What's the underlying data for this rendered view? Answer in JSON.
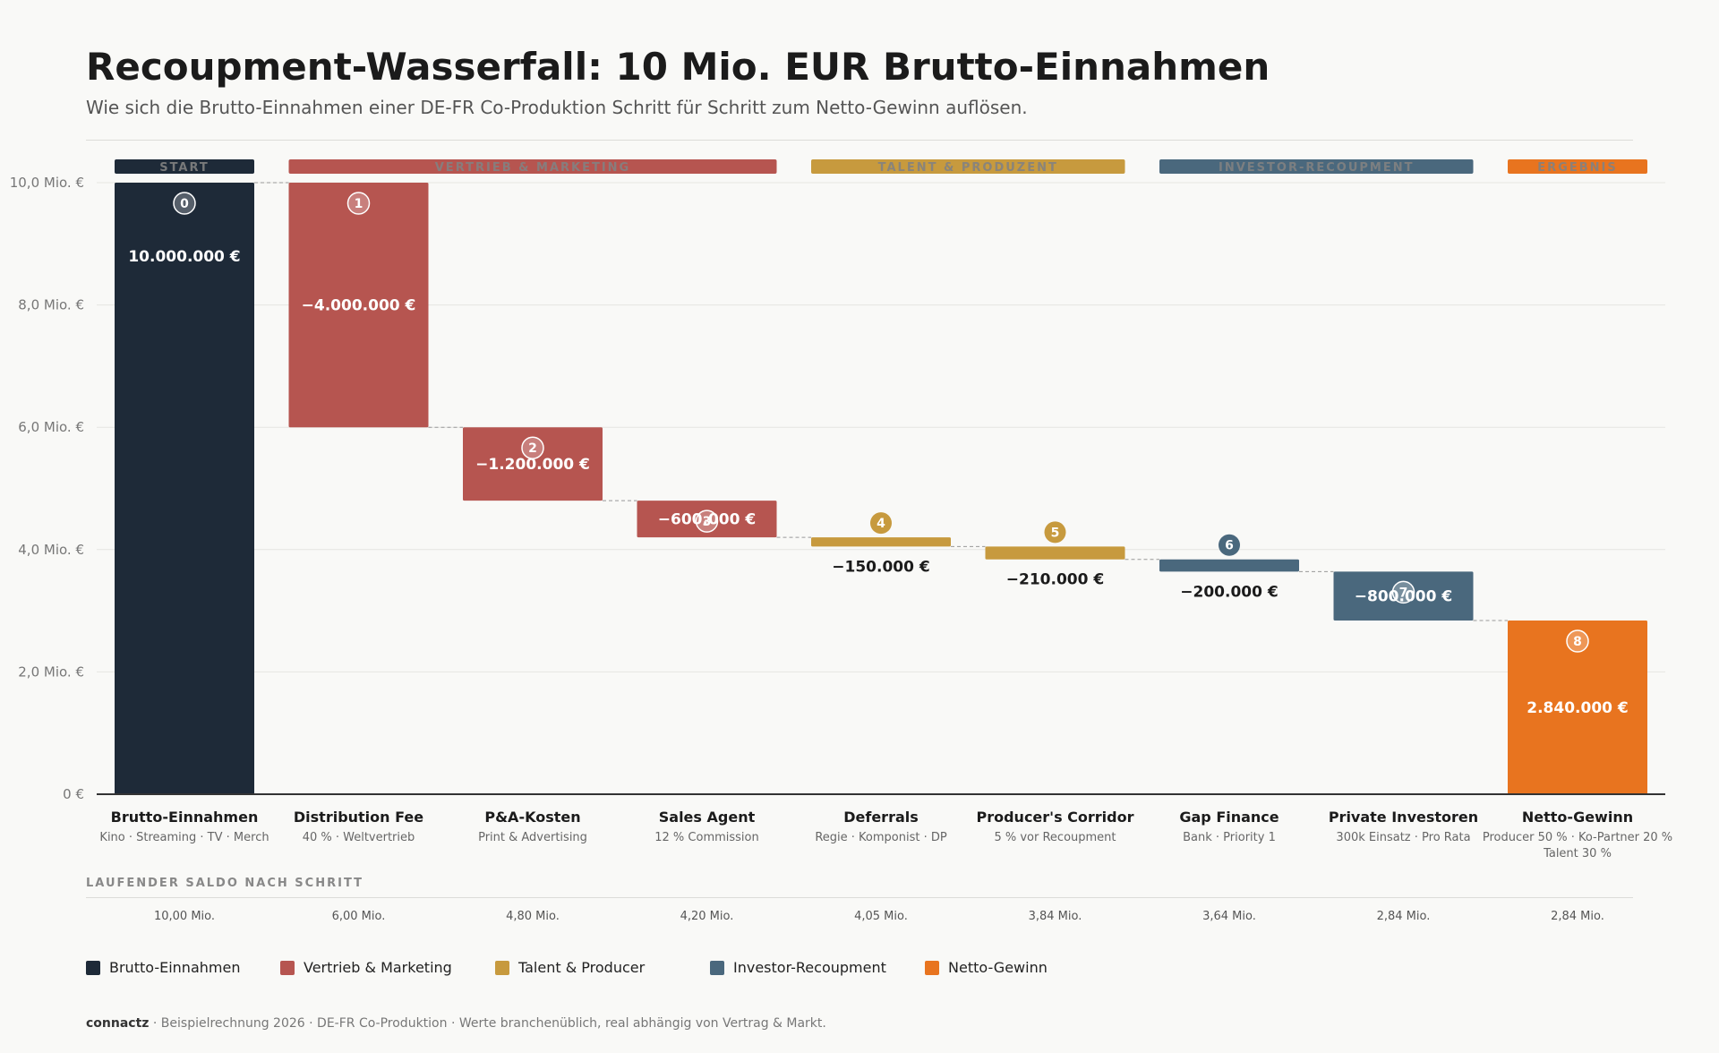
{
  "header": {
    "title": "Recoupment-Wasserfall: 10 Mio. EUR Brutto-Einnahmen",
    "subtitle": "Wie sich die Brutto-Einnahmen einer DE-FR Co-Produktion Schritt für Schritt zum Netto-Gewinn auflösen."
  },
  "colors": {
    "start": "#1e2a38",
    "vertrieb": "#b65550",
    "talent": "#c79a3e",
    "investor": "#4a687d",
    "netto": "#e8741f"
  },
  "chart_data": {
    "type": "waterfall",
    "unit": "EUR",
    "ylim": [
      0,
      10000000
    ],
    "y_ticks": [
      {
        "value": 0,
        "label": "0 €"
      },
      {
        "value": 2000000,
        "label": "2,0 Mio. €"
      },
      {
        "value": 4000000,
        "label": "4,0 Mio. €"
      },
      {
        "value": 6000000,
        "label": "6,0 Mio. €"
      },
      {
        "value": 8000000,
        "label": "8,0 Mio. €"
      },
      {
        "value": 10000000,
        "label": "10,0 Mio. €"
      }
    ],
    "grid": true,
    "groups": [
      {
        "label": "START",
        "color_key": "start",
        "from": 0,
        "to": 0
      },
      {
        "label": "VERTRIEB & MARKETING",
        "color_key": "vertrieb",
        "from": 1,
        "to": 3
      },
      {
        "label": "TALENT & PRODUZENT",
        "color_key": "talent",
        "from": 4,
        "to": 5
      },
      {
        "label": "INVESTOR-RECOUPMENT",
        "color_key": "investor",
        "from": 6,
        "to": 7
      },
      {
        "label": "ERGEBNIS",
        "color_key": "netto",
        "from": 8,
        "to": 8
      }
    ],
    "steps": [
      {
        "step": "0",
        "category": "Brutto-Einnahmen",
        "sublabel": "Kino · Streaming · TV · Merch",
        "value": 10000000,
        "kind": "total",
        "value_label": "10.000.000 €",
        "color_key": "start",
        "running_label": "10,00 Mio."
      },
      {
        "step": "1",
        "category": "Distribution Fee",
        "sublabel": "40 % · Weltvertrieb",
        "value": -4000000,
        "kind": "delta",
        "value_label": "−4.000.000 €",
        "color_key": "vertrieb",
        "running_label": "6,00 Mio."
      },
      {
        "step": "2",
        "category": "P&A-Kosten",
        "sublabel": "Print & Advertising",
        "value": -1200000,
        "kind": "delta",
        "value_label": "−1.200.000 €",
        "color_key": "vertrieb",
        "running_label": "4,80 Mio."
      },
      {
        "step": "3",
        "category": "Sales Agent",
        "sublabel": "12 % Commission",
        "value": -600000,
        "kind": "delta",
        "value_label": "−600.000 €",
        "color_key": "vertrieb",
        "running_label": "4,20 Mio."
      },
      {
        "step": "4",
        "category": "Deferrals",
        "sublabel": "Regie · Komponist · DP",
        "value": -150000,
        "kind": "delta",
        "value_label": "−150.000 €",
        "color_key": "talent",
        "running_label": "4,05 Mio."
      },
      {
        "step": "5",
        "category": "Producer's Corridor",
        "sublabel": "5 % vor Recoupment",
        "value": -210000,
        "kind": "delta",
        "value_label": "−210.000 €",
        "color_key": "talent",
        "running_label": "3,84 Mio."
      },
      {
        "step": "6",
        "category": "Gap Finance",
        "sublabel": "Bank · Priority 1",
        "value": -200000,
        "kind": "delta",
        "value_label": "−200.000 €",
        "color_key": "investor",
        "running_label": "3,64 Mio."
      },
      {
        "step": "7",
        "category": "Private Investoren",
        "sublabel": "300k Einsatz · Pro Rata",
        "value": -800000,
        "kind": "delta",
        "value_label": "−800.000 €",
        "color_key": "investor",
        "running_label": "2,84 Mio."
      },
      {
        "step": "8",
        "category": "Netto-Gewinn",
        "sublabel": "Producer 50 % · Ko-Partner 20 %",
        "sublabel2": "Talent 30 %",
        "value": 2840000,
        "kind": "total",
        "value_label": "2.840.000 €",
        "color_key": "netto",
        "running_label": "2,84 Mio."
      }
    ],
    "legend": [
      {
        "label": "Brutto-Einnahmen",
        "color_key": "start"
      },
      {
        "label": "Vertrieb & Marketing",
        "color_key": "vertrieb"
      },
      {
        "label": "Talent & Producer",
        "color_key": "talent"
      },
      {
        "label": "Investor-Recoupment",
        "color_key": "investor"
      },
      {
        "label": "Netto-Gewinn",
        "color_key": "netto"
      }
    ]
  },
  "running_section": {
    "label": "LAUFENDER SALDO NACH SCHRITT"
  },
  "footer": {
    "brand": "connactz",
    "text": "· Beispielrechnung 2026 · DE-FR Co-Produktion · Werte branchenüblich, real abhängig von Vertrag & Markt."
  }
}
